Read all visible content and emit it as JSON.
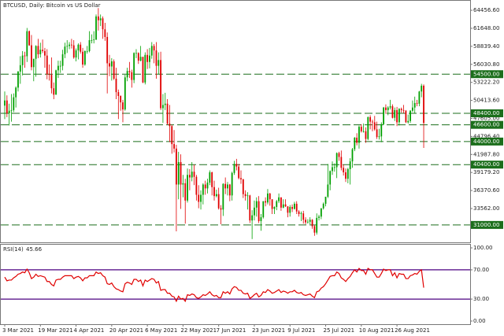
{
  "chart_data": [
    {
      "type": "candlestick",
      "title": "BTCUSD, Daily:  Bitcoin vs US Dollar",
      "categories": [
        "3 Mar 2021",
        null,
        null,
        null,
        null,
        null,
        null,
        null,
        null,
        null,
        null,
        null,
        null,
        null,
        null,
        null,
        "19 Mar 2021",
        null,
        null,
        null,
        null,
        null,
        null,
        null,
        null,
        null,
        null,
        null,
        null,
        null,
        null,
        null,
        "4 Apr 2021",
        null,
        null,
        null,
        null,
        null,
        null,
        null,
        null,
        null,
        null,
        null,
        null,
        null,
        null,
        null,
        "20 Apr 2021",
        null,
        null,
        null,
        null,
        null,
        null,
        null,
        null,
        null,
        null,
        null,
        null,
        null,
        null,
        null,
        "6 May 2021",
        null,
        null,
        null,
        null,
        null,
        null,
        null,
        null,
        null,
        null,
        null,
        null,
        null,
        null,
        null,
        "22 May 2021",
        null,
        null,
        null,
        null,
        null,
        null,
        null,
        null,
        null,
        null,
        null,
        null,
        null,
        null,
        null,
        "7 Jun 2021",
        null,
        null,
        null,
        null,
        null,
        null,
        null,
        null,
        null,
        null,
        null,
        null,
        null,
        null,
        null,
        "23 Jun 2021",
        null,
        null,
        null,
        null,
        null,
        null,
        null,
        null,
        null,
        null,
        null,
        null,
        null,
        null,
        null,
        "9 Jul 2021",
        null,
        null,
        null,
        null,
        null,
        null,
        null,
        null,
        null,
        null,
        null,
        null,
        null,
        null,
        null,
        "25 Jul 2021",
        null,
        null,
        null,
        null,
        null,
        null,
        null,
        null,
        null,
        null,
        null,
        null,
        null,
        null,
        null,
        "10 Aug 2021",
        null,
        null,
        null,
        null,
        null,
        null,
        null,
        null,
        null,
        null,
        null,
        null,
        null,
        null,
        null,
        "26 Aug 2021",
        null,
        null,
        null,
        null,
        null,
        null,
        null,
        null,
        null,
        null,
        null,
        null
      ],
      "open": [
        49600,
        50400,
        48400,
        48800,
        48900,
        50900,
        52400,
        54900,
        55900,
        57400,
        57300,
        61200,
        59000,
        55600,
        56900,
        58900,
        57600,
        58300,
        58100,
        57400,
        54500,
        54400,
        52300,
        51300,
        55100,
        55800,
        55800,
        57600,
        58800,
        58900,
        59100,
        59000,
        57100,
        58200,
        59100,
        58000,
        56000,
        58100,
        58100,
        59800,
        59800,
        59900,
        63500,
        62900,
        63200,
        61500,
        60300,
        56200,
        55700,
        56500,
        53800,
        51700,
        51100,
        50100,
        49000,
        54000,
        55000,
        54800,
        53600,
        57800,
        57800,
        56600,
        57200,
        53200,
        57500,
        56400,
        57400,
        58900,
        58200,
        55800,
        56700,
        49200,
        49700,
        49900,
        46800,
        46400,
        43600,
        42900,
        37300,
        40800,
        37300,
        37500,
        34800,
        38800,
        38400,
        39300,
        38500,
        35700,
        34600,
        35700,
        37300,
        36700,
        37600,
        39200,
        36900,
        35500,
        35800,
        33600,
        33400,
        37400,
        36700,
        37300,
        35600,
        39100,
        40500,
        40100,
        38300,
        38100,
        35800,
        35500,
        35600,
        31700,
        32500,
        33700,
        34700,
        31600,
        32200,
        34700,
        34500,
        35900,
        35000,
        33500,
        33800,
        34700,
        35300,
        33700,
        34200,
        33900,
        32900,
        33800,
        33500,
        34300,
        33100,
        32700,
        32800,
        31800,
        31400,
        31500,
        31800,
        30800,
        29800,
        32100,
        32300,
        33600,
        34300,
        35400,
        37300,
        39400,
        40000,
        40000,
        42200,
        41600,
        39900,
        39200,
        38200,
        39700,
        40900,
        42800,
        44600,
        43800,
        46300,
        45600,
        45600,
        44400,
        47800,
        47100,
        47000,
        45900,
        44700,
        44800,
        46700,
        49300,
        48900,
        49300,
        49500,
        47700,
        48900,
        47000,
        49100,
        48900,
        48800,
        47000,
        47200,
        48800,
        49300,
        50000,
        49900,
        51800,
        52700
      ],
      "high": [
        51800,
        51200,
        49900,
        51400,
        51500,
        52600,
        55000,
        57300,
        58100,
        58000,
        61700,
        61300,
        60600,
        56900,
        59000,
        60000,
        59400,
        59900,
        58600,
        58400,
        56000,
        57100,
        53200,
        55200,
        56600,
        56600,
        58300,
        59400,
        59800,
        59500,
        60000,
        59800,
        58500,
        59300,
        59500,
        58600,
        58200,
        58900,
        61200,
        60700,
        61200,
        63800,
        64800,
        63800,
        63500,
        62500,
        61000,
        57500,
        57000,
        56800,
        55500,
        52100,
        51200,
        50500,
        54400,
        55500,
        56400,
        55200,
        57900,
        58400,
        57900,
        58900,
        57200,
        57900,
        58400,
        58600,
        59500,
        59200,
        59500,
        57900,
        58000,
        51400,
        51600,
        50600,
        49700,
        46600,
        45800,
        43500,
        42400,
        42000,
        38800,
        38200,
        39800,
        39700,
        40800,
        40400,
        38800,
        37200,
        36400,
        37500,
        37900,
        38200,
        39500,
        39300,
        37900,
        36500,
        36800,
        34100,
        37500,
        38400,
        37700,
        37400,
        39300,
        41000,
        41300,
        40500,
        39500,
        38200,
        36400,
        36100,
        35700,
        33300,
        34800,
        35300,
        35500,
        32700,
        34700,
        35300,
        36600,
        36000,
        35000,
        33900,
        34900,
        35900,
        35300,
        35000,
        35000,
        33900,
        34100,
        34200,
        34600,
        34700,
        33300,
        33100,
        33200,
        32200,
        31900,
        32200,
        31900,
        31000,
        32800,
        32600,
        33600,
        34500,
        35400,
        40500,
        39500,
        40900,
        40600,
        42300,
        42400,
        42600,
        40400,
        39800,
        39900,
        41400,
        43000,
        44700,
        45300,
        46500,
        46700,
        46800,
        46200,
        47900,
        48100,
        47400,
        48000,
        47100,
        46000,
        47000,
        49400,
        49800,
        49500,
        50500,
        49800,
        49300,
        49400,
        49200,
        49300,
        49700,
        48900,
        48200,
        48900,
        50400,
        51000,
        50500,
        51900,
        53000,
        52900
      ],
      "low": [
        47500,
        47800,
        46500,
        47100,
        48600,
        49300,
        51800,
        53000,
        54300,
        55500,
        56400,
        58900,
        55100,
        53400,
        54100,
        57000,
        57100,
        57800,
        55500,
        53700,
        53500,
        51500,
        50600,
        51300,
        53900,
        54700,
        55100,
        57000,
        57800,
        58400,
        58500,
        56900,
        56500,
        56800,
        57700,
        55500,
        55800,
        57700,
        57900,
        59300,
        59300,
        59800,
        61300,
        62000,
        60000,
        59700,
        51500,
        54200,
        53500,
        53600,
        50600,
        47500,
        48800,
        47000,
        48800,
        53400,
        53900,
        52400,
        53100,
        57000,
        56100,
        56500,
        53100,
        52900,
        55300,
        55400,
        56900,
        56200,
        53800,
        54500,
        48900,
        46900,
        48900,
        46600,
        43900,
        42100,
        42300,
        30000,
        35000,
        33500,
        35300,
        31200,
        34500,
        36400,
        37800,
        37200,
        34800,
        33600,
        33400,
        34200,
        35700,
        35900,
        37200,
        35600,
        34800,
        35300,
        33400,
        31100,
        32400,
        35800,
        35600,
        34700,
        34800,
        38800,
        39500,
        38100,
        37400,
        35200,
        34800,
        33400,
        31300,
        28800,
        31700,
        32300,
        31300,
        30100,
        32000,
        33900,
        34200,
        34000,
        32700,
        32700,
        33300,
        34400,
        33200,
        33600,
        33800,
        32200,
        32300,
        33000,
        33400,
        32700,
        32300,
        31600,
        31200,
        31100,
        31200,
        31100,
        30400,
        29300,
        29500,
        31700,
        31900,
        33400,
        33900,
        35200,
        36400,
        38800,
        39300,
        38300,
        41000,
        39500,
        38700,
        37700,
        37500,
        37300,
        39900,
        42500,
        43400,
        42900,
        45400,
        45400,
        43800,
        44200,
        45900,
        45600,
        45700,
        44400,
        44300,
        43900,
        46600,
        48300,
        48100,
        49000,
        47600,
        47200,
        46400,
        46500,
        48500,
        48400,
        46900,
        46800,
        46900,
        48600,
        48400,
        49500,
        49500,
        50900,
        43000
      ],
      "close": [
        50400,
        48400,
        48800,
        48900,
        50900,
        52400,
        54900,
        55900,
        57400,
        57300,
        61200,
        59000,
        55600,
        56900,
        58900,
        57600,
        58300,
        58100,
        57400,
        54500,
        54400,
        52300,
        51300,
        55100,
        55800,
        55800,
        57600,
        58800,
        58900,
        59100,
        59000,
        57100,
        58200,
        59100,
        58000,
        56000,
        58100,
        58100,
        59800,
        59800,
        59900,
        63500,
        62900,
        63200,
        61500,
        60300,
        56200,
        55700,
        56500,
        53800,
        51700,
        51100,
        50100,
        49000,
        54000,
        55000,
        54800,
        53600,
        57800,
        57800,
        56600,
        57200,
        53200,
        57500,
        56400,
        57400,
        58900,
        58200,
        55800,
        56700,
        49200,
        49700,
        49900,
        46800,
        46400,
        43600,
        42900,
        37300,
        40800,
        37300,
        37500,
        34800,
        38800,
        38400,
        39300,
        38500,
        35700,
        34600,
        35700,
        37300,
        36700,
        37600,
        39200,
        36900,
        35500,
        35800,
        33600,
        33400,
        37400,
        36700,
        37300,
        35600,
        39100,
        40500,
        40100,
        38300,
        38100,
        35800,
        35500,
        35600,
        31700,
        32500,
        33700,
        34700,
        31600,
        32200,
        34700,
        34500,
        35900,
        35000,
        33500,
        33800,
        34700,
        35300,
        33700,
        34200,
        33900,
        32900,
        33800,
        33500,
        34300,
        33100,
        32700,
        32800,
        31800,
        31400,
        31500,
        31800,
        30800,
        29800,
        32100,
        32300,
        33600,
        34300,
        35400,
        37300,
        39400,
        40000,
        40000,
        42200,
        41600,
        39900,
        39200,
        38200,
        39700,
        40900,
        42800,
        44600,
        43800,
        46300,
        45600,
        45600,
        44400,
        47800,
        47100,
        47000,
        45900,
        44700,
        44800,
        46700,
        49300,
        48900,
        49300,
        49500,
        47700,
        48900,
        47000,
        49100,
        48900,
        48800,
        47000,
        47200,
        48800,
        49300,
        50000,
        49900,
        51800,
        52700,
        46900
      ],
      "up_color": "#00a000",
      "down_color": "#e00000",
      "ylim": [
        28285,
        65938
      ],
      "yticks": [
        {
          "value": 64456.6,
          "label": "64456.60"
        },
        {
          "value": 61648,
          "label": "61648.00"
        },
        {
          "value": 58839.4,
          "label": "58839.40"
        },
        {
          "value": 56030.8,
          "label": "56030.80"
        },
        {
          "value": 53222.2,
          "label": "53222.20"
        },
        {
          "value": 50413.6,
          "label": "50413.60"
        },
        {
          "value": 47605,
          "label": "47605.00"
        },
        {
          "value": 44796.4,
          "label": "44796.40"
        },
        {
          "value": 41987.8,
          "label": "41987.80"
        },
        {
          "value": 39179.2,
          "label": "39179.20"
        },
        {
          "value": 36370.6,
          "label": "36370.60"
        },
        {
          "value": 33562,
          "label": "33562.00"
        }
      ],
      "levels": [
        {
          "value": 54500,
          "label": "54500.00"
        },
        {
          "value": 48400,
          "label": "48400.00"
        },
        {
          "value": 46600,
          "label": "46600.00"
        },
        {
          "value": 44000,
          "label": "44000.00"
        },
        {
          "value": 40400,
          "label": "40400.00"
        },
        {
          "value": 31000,
          "label": "31000.00"
        }
      ],
      "level_color": "#1b6e1b"
    },
    {
      "type": "line",
      "name": "RSI(14)",
      "color": "#e00000",
      "values": [
        60,
        55,
        56,
        56,
        59,
        61,
        64,
        65,
        67,
        66,
        71,
        66,
        58,
        60,
        64,
        61,
        62,
        61,
        60,
        54,
        54,
        50,
        48,
        56,
        57,
        57,
        60,
        62,
        62,
        62,
        62,
        58,
        60,
        61,
        59,
        55,
        59,
        59,
        62,
        62,
        62,
        67,
        65,
        66,
        62,
        60,
        51,
        50,
        52,
        47,
        44,
        43,
        41,
        40,
        51,
        53,
        52,
        50,
        57,
        57,
        54,
        56,
        48,
        56,
        54,
        56,
        58,
        57,
        52,
        54,
        42,
        43,
        43,
        38,
        38,
        34,
        33,
        27,
        34,
        30,
        31,
        27,
        36,
        35,
        37,
        36,
        32,
        31,
        33,
        36,
        35,
        37,
        40,
        36,
        34,
        35,
        32,
        32,
        40,
        38,
        40,
        37,
        44,
        47,
        46,
        42,
        42,
        38,
        37,
        38,
        31,
        33,
        36,
        38,
        33,
        35,
        40,
        39,
        43,
        41,
        38,
        39,
        41,
        43,
        39,
        41,
        40,
        38,
        40,
        40,
        42,
        39,
        38,
        39,
        36,
        35,
        36,
        37,
        34,
        32,
        40,
        41,
        45,
        47,
        51,
        56,
        61,
        62,
        62,
        67,
        65,
        59,
        57,
        54,
        58,
        61,
        66,
        70,
        67,
        72,
        69,
        69,
        64,
        72,
        70,
        70,
        65,
        60,
        60,
        65,
        71,
        69,
        70,
        70,
        62,
        66,
        59,
        65,
        64,
        64,
        58,
        58,
        62,
        63,
        65,
        64,
        68,
        70,
        45.66
      ],
      "ylim": [
        -4.3,
        104.3
      ],
      "yticks": [
        {
          "value": 100,
          "label": "100.00"
        },
        {
          "value": 70,
          "label": "70.00"
        },
        {
          "value": 30,
          "label": "30.00"
        },
        {
          "value": 0,
          "label": "0.00"
        }
      ],
      "levels": [
        70,
        30
      ],
      "level_color": "#4b0082"
    }
  ]
}
